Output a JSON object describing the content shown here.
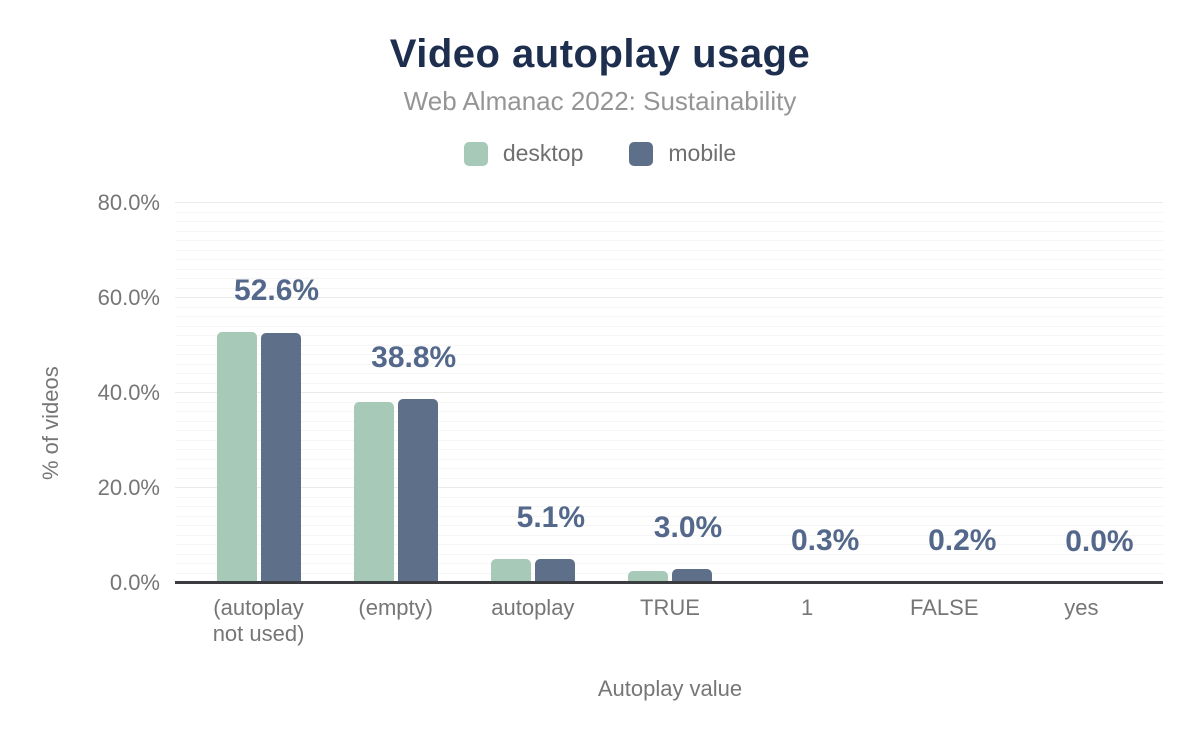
{
  "chart_data": {
    "type": "bar",
    "title": "Video autoplay usage",
    "subtitle": "Web Almanac 2022: Sustainability",
    "xlabel": "Autoplay value",
    "ylabel": "% of videos",
    "categories": [
      "(autoplay not used)",
      "(empty)",
      "autoplay",
      "TRUE",
      "1",
      "FALSE",
      "yes"
    ],
    "series": [
      {
        "name": "desktop",
        "color": "#a6c9b8",
        "values": [
          52.9,
          38.1,
          5.0,
          2.5,
          0.3,
          0.2,
          0.0
        ]
      },
      {
        "name": "mobile",
        "color": "#5e7089",
        "values": [
          52.6,
          38.8,
          5.1,
          3.0,
          0.3,
          0.2,
          0.0
        ]
      }
    ],
    "data_labels": [
      "52.6%",
      "38.8%",
      "5.1%",
      "3.0%",
      "0.3%",
      "0.2%",
      "0.0%"
    ],
    "y_ticks": [
      {
        "value": 0,
        "label": "0.0%"
      },
      {
        "value": 20,
        "label": "20.0%"
      },
      {
        "value": 40,
        "label": "40.0%"
      },
      {
        "value": 60,
        "label": "60.0%"
      },
      {
        "value": 80,
        "label": "80.0%"
      }
    ],
    "ylim": [
      0,
      80
    ],
    "grid": {
      "orientation": "horizontal",
      "minor_step": 2,
      "major_step": 20
    },
    "legend_position": "top"
  },
  "colors": {
    "background": "#ffffff",
    "title": "#1d2e4f",
    "subtitle": "#959595",
    "legend_text": "#6f6f6f",
    "axis_text": "#767676",
    "data_label": "#53688a",
    "axis_line": "#3b3c40",
    "grid_minor": "#f5f5f5",
    "grid_major": "#eaeaea"
  }
}
